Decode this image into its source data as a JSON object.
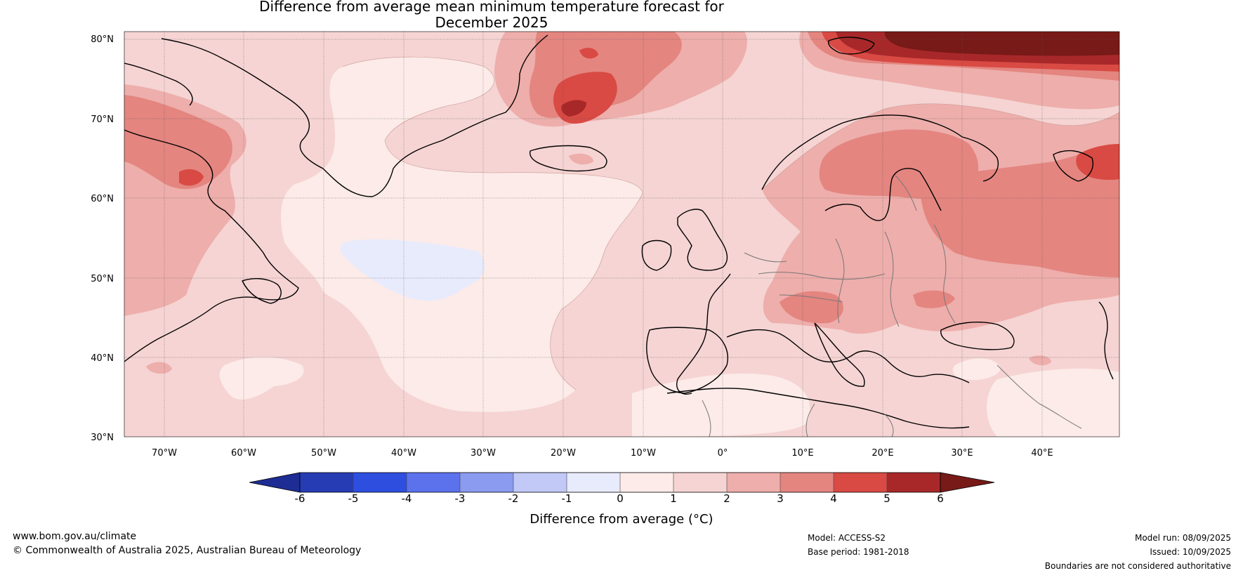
{
  "title": {
    "line1": "Difference from average mean minimum temperature forecast for",
    "line2": "December 2025"
  },
  "map": {
    "lat_labels": [
      "80°N",
      "70°N",
      "60°N",
      "50°N",
      "40°N",
      "30°N"
    ],
    "lon_labels": [
      "70°W",
      "60°W",
      "50°W",
      "40°W",
      "30°W",
      "20°W",
      "10°W",
      "0°",
      "10°E",
      "20°E",
      "30°E",
      "40°E"
    ],
    "colors": {
      "background": "#f5d4d3",
      "light_warm": "#fcebe8",
      "cool_blue": "#e8ebfc",
      "warm_2_3": "#eeaeab",
      "warm_3_4": "#e48580",
      "warm_4_5": "#d84a43",
      "warm_5_6": "#a8282a",
      "warm_6_plus": "#781a17",
      "coastline": "#000000",
      "borders": "#777777"
    }
  },
  "colorbar": {
    "ticks": [
      "-6",
      "-5",
      "-4",
      "-3",
      "-2",
      "-1",
      "0",
      "1",
      "2",
      "3",
      "4",
      "5",
      "6"
    ],
    "colors": [
      "#1e2d93",
      "#263cb4",
      "#2e4ee0",
      "#5b72ec",
      "#8a9bf0",
      "#c2c9f7",
      "#e8ebfc",
      "#fcebe8",
      "#f5d4d3",
      "#eeaeab",
      "#e48580",
      "#d84a43",
      "#a8282a",
      "#781a17"
    ],
    "label": "Difference from average (°C)"
  },
  "footer": {
    "website": "www.bom.gov.au/climate",
    "copyright": "© Commonwealth of Australia 2025, Australian Bureau of Meteorology",
    "model": "Model: ACCESS-S2",
    "base_period": "Base period: 1981-2018",
    "model_run": "Model run: 08/09/2025",
    "issued": "Issued: 10/09/2025",
    "disclaimer": "Boundaries are not considered authoritative"
  }
}
